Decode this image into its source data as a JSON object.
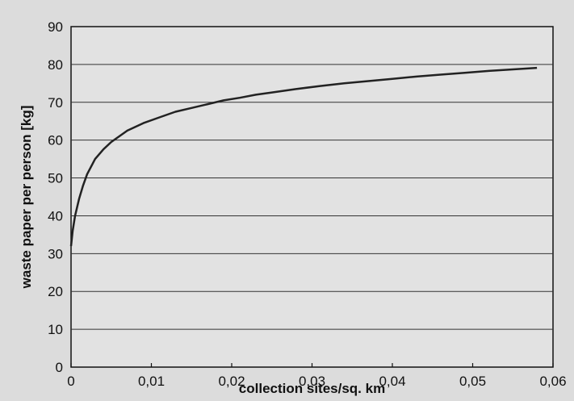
{
  "chart_data": {
    "type": "line",
    "xlabel": "collection sites/sq. km",
    "ylabel": "waste paper per person [kg]",
    "xlim": [
      0,
      0.06
    ],
    "ylim": [
      0,
      90
    ],
    "x_ticks": [
      0,
      0.01,
      0.02,
      0.03,
      0.04,
      0.05,
      0.06
    ],
    "x_tick_labels": [
      "0",
      "0,01",
      "0,02",
      "0,03",
      "0,04",
      "0,05",
      "0,06"
    ],
    "y_ticks": [
      0,
      10,
      20,
      30,
      40,
      50,
      60,
      70,
      80,
      90
    ],
    "y_tick_labels": [
      "0",
      "10",
      "20",
      "30",
      "40",
      "50",
      "60",
      "70",
      "80",
      "90"
    ],
    "grid": true,
    "series": [
      {
        "color": "#222222",
        "points": [
          [
            0.0,
            32
          ],
          [
            0.0002,
            36
          ],
          [
            0.0005,
            40
          ],
          [
            0.001,
            44.5
          ],
          [
            0.0015,
            48
          ],
          [
            0.002,
            51
          ],
          [
            0.003,
            55
          ],
          [
            0.004,
            57.5
          ],
          [
            0.005,
            59.5
          ],
          [
            0.007,
            62.5
          ],
          [
            0.009,
            64.5
          ],
          [
            0.011,
            66
          ],
          [
            0.013,
            67.5
          ],
          [
            0.015,
            68.5
          ],
          [
            0.017,
            69.5
          ],
          [
            0.019,
            70.5
          ],
          [
            0.021,
            71.2
          ],
          [
            0.023,
            72
          ],
          [
            0.025,
            72.6
          ],
          [
            0.028,
            73.5
          ],
          [
            0.031,
            74.3
          ],
          [
            0.034,
            75
          ],
          [
            0.037,
            75.6
          ],
          [
            0.04,
            76.2
          ],
          [
            0.043,
            76.8
          ],
          [
            0.046,
            77.3
          ],
          [
            0.049,
            77.8
          ],
          [
            0.052,
            78.3
          ],
          [
            0.055,
            78.7
          ],
          [
            0.058,
            79.1
          ]
        ]
      }
    ]
  }
}
